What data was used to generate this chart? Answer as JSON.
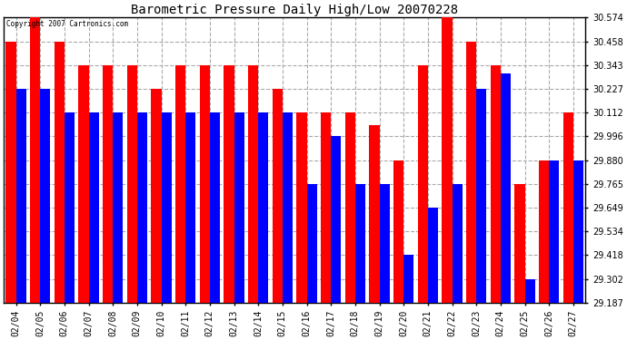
{
  "title": "Barometric Pressure Daily High/Low 20070228",
  "copyright": "Copyright 2007 Cartronics.com",
  "categories": [
    "02/04",
    "02/05",
    "02/06",
    "02/07",
    "02/08",
    "02/09",
    "02/10",
    "02/11",
    "02/12",
    "02/13",
    "02/14",
    "02/15",
    "02/16",
    "02/17",
    "02/18",
    "02/19",
    "02/20",
    "02/21",
    "02/22",
    "02/23",
    "02/24",
    "02/25",
    "02/26",
    "02/27"
  ],
  "highs": [
    30.458,
    30.574,
    30.458,
    30.343,
    30.343,
    30.343,
    30.227,
    30.343,
    30.343,
    30.343,
    30.343,
    30.227,
    30.112,
    30.112,
    30.112,
    30.05,
    29.88,
    30.343,
    30.574,
    30.458,
    30.343,
    29.765,
    29.88,
    30.112
  ],
  "lows": [
    30.227,
    30.227,
    30.112,
    30.112,
    30.112,
    30.112,
    30.112,
    30.112,
    30.112,
    30.112,
    30.112,
    30.112,
    29.765,
    29.996,
    29.765,
    29.765,
    29.418,
    29.649,
    29.765,
    30.227,
    30.302,
    29.302,
    29.88,
    29.88
  ],
  "high_color": "#ff0000",
  "low_color": "#0000ff",
  "bg_color": "#ffffff",
  "grid_color": "#aaaaaa",
  "yticks": [
    29.187,
    29.302,
    29.418,
    29.534,
    29.649,
    29.765,
    29.88,
    29.996,
    30.112,
    30.227,
    30.343,
    30.458,
    30.574
  ],
  "ymin": 29.187,
  "ymax": 30.574,
  "bar_width": 0.42
}
